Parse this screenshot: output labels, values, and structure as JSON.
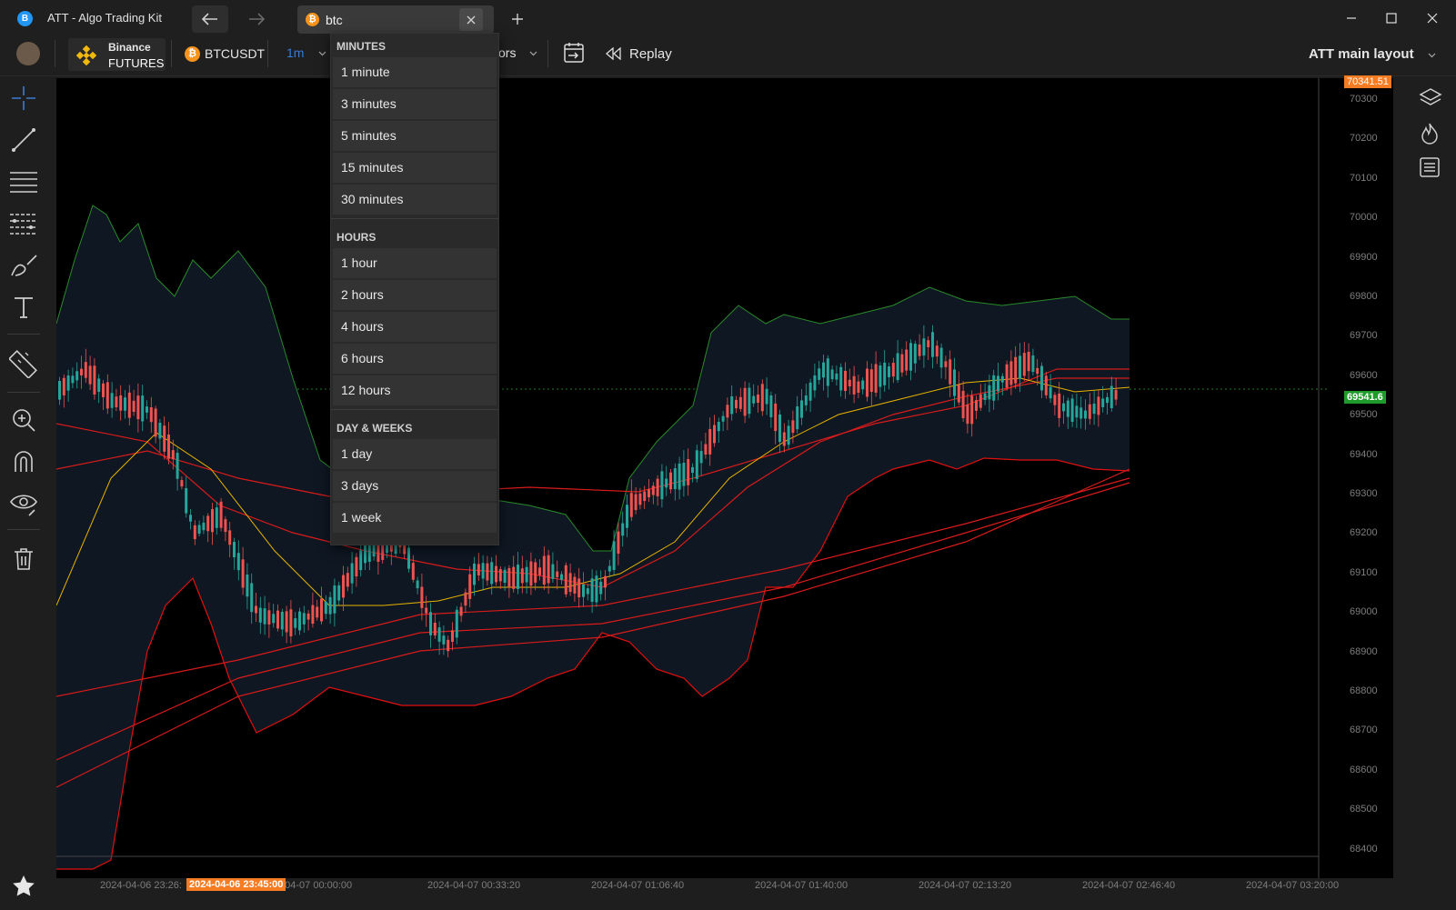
{
  "window": {
    "app_icon": "B",
    "title": "ATT - Algo Trading Kit",
    "tab": {
      "search_value": "btc",
      "icon": "bitcoin-icon"
    }
  },
  "toolbar": {
    "exchange_name": "Binance",
    "exchange_type": "FUTURES",
    "symbol": "BTCUSDT",
    "interval": "1m",
    "indicators_label": "ors",
    "replay_label": "Replay",
    "layout_label": "ATT main layout"
  },
  "timeframe_dropdown": {
    "groups": [
      {
        "header": "MINUTES",
        "items": [
          "1 minute",
          "3 minutes",
          "5 minutes",
          "15 minutes",
          "30 minutes"
        ]
      },
      {
        "header": "HOURS",
        "items": [
          "1 hour",
          "2 hours",
          "4 hours",
          "6 hours",
          "12 hours"
        ]
      },
      {
        "header": "DAY & WEEKS",
        "items": [
          "1 day",
          "3 days",
          "1 week"
        ]
      }
    ]
  },
  "chart": {
    "price_axis": [
      "70300",
      "70200",
      "70100",
      "70000",
      "69900",
      "69800",
      "69700",
      "69600",
      "69500",
      "69400",
      "69300",
      "69200",
      "69100",
      "69000",
      "68900",
      "68800",
      "68700",
      "68600",
      "68500",
      "68400"
    ],
    "top_price_tag": "70341.51",
    "current_price_tag": "69541.6",
    "time_axis": [
      "2024-04-06 23:26:",
      "2024-04-07 00:00:00",
      "2024-04-07 00:33:20",
      "2024-04-07 01:06:40",
      "2024-04-07 01:40:00",
      "2024-04-07 02:13:20",
      "2024-04-07 02:46:40",
      "2024-04-07 03:20:00"
    ],
    "crosshair_time": "2024-04-06 23:45:00",
    "colors": {
      "up": "#26a69a",
      "down": "#ef5350",
      "band": "#0f1722",
      "accent_orange": "#f57c23",
      "current_green": "#1f9b2b"
    }
  }
}
